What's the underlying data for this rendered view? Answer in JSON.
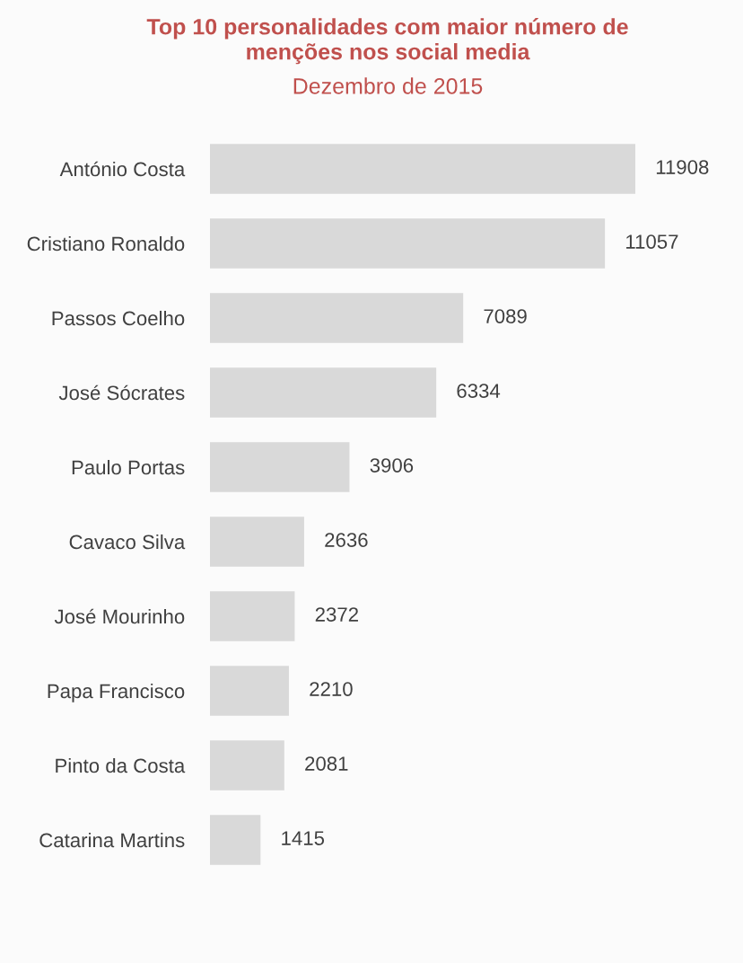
{
  "chart_data": {
    "type": "bar",
    "orientation": "horizontal",
    "title": "Top 10 personalidades com maior número de\nmenções nos social media",
    "subtitle": "Dezembro de 2015",
    "categories": [
      "António Costa",
      "Cristiano Ronaldo",
      "Passos Coelho",
      "José Sócrates",
      "Paulo Portas",
      "Cavaco Silva",
      "José Mourinho",
      "Papa Francisco",
      "Pinto da Costa",
      "Catarina Martins"
    ],
    "values": [
      11908,
      11057,
      7089,
      6334,
      3906,
      2636,
      2372,
      2210,
      2081,
      1415
    ],
    "color": "#d9d9d9",
    "data_labels": true
  }
}
